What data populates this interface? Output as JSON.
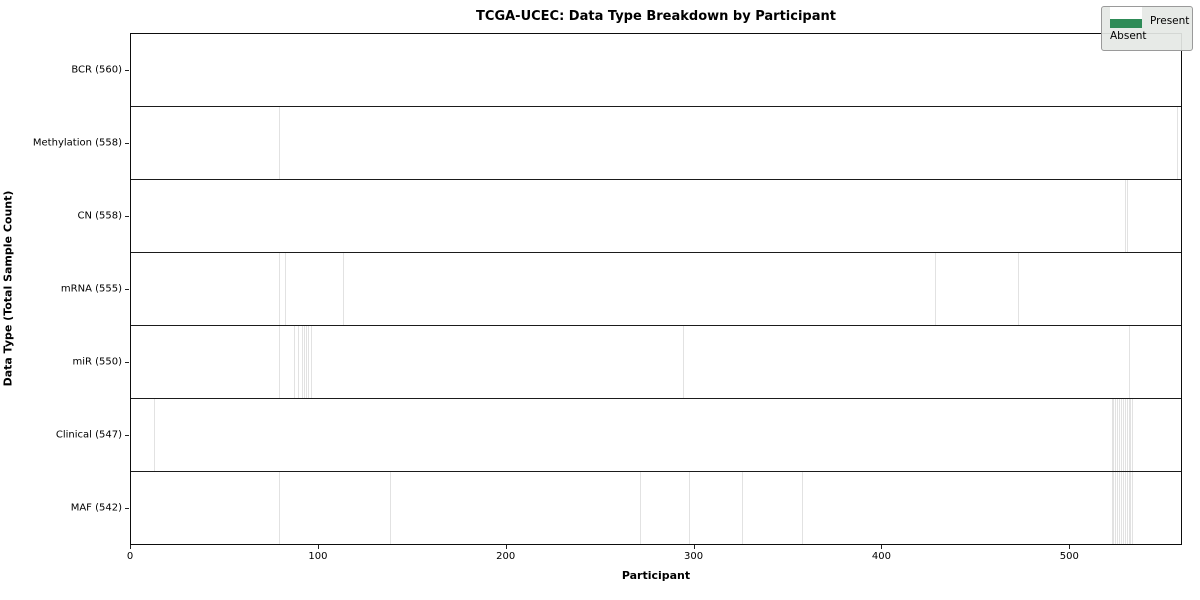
{
  "chart_data": {
    "type": "heatmap",
    "title": "TCGA-UCEC: Data Type Breakdown by Participant",
    "xlabel": "Participant",
    "ylabel": "Data Type (Total Sample Count)",
    "xlim": [
      0,
      560
    ],
    "n_participants": 560,
    "x_ticks": [
      0,
      100,
      200,
      300,
      400,
      500
    ],
    "grid": false,
    "legend_position": "upper right",
    "legend": [
      {
        "label": "Present",
        "color": "#2e8b57"
      },
      {
        "label": "Absent",
        "color": "#ffffff"
      }
    ],
    "colors": {
      "present": "#2e8b57",
      "present_edge": "#1e6240",
      "absent": "#ffffff",
      "absent_edge": "#c6c6c6",
      "row_separator": "#1b1b1b",
      "plot_border": "#0d0d0d"
    },
    "rows": [
      {
        "data_type": "BCR",
        "label": "BCR (560)",
        "present_count": 560,
        "absent_indices": []
      },
      {
        "data_type": "Methylation",
        "label": "Methylation (558)",
        "present_count": 558,
        "absent_indices": [
          79,
          557
        ]
      },
      {
        "data_type": "CN",
        "label": "CN (558)",
        "present_count": 558,
        "absent_indices": [
          529,
          530
        ]
      },
      {
        "data_type": "mRNA",
        "label": "mRNA (555)",
        "present_count": 555,
        "absent_indices": [
          79,
          82,
          113,
          428,
          472
        ]
      },
      {
        "data_type": "miR",
        "label": "miR (550)",
        "present_count": 550,
        "absent_indices": [
          79,
          87,
          89,
          91,
          92,
          93,
          94,
          96,
          294,
          531
        ]
      },
      {
        "data_type": "Clinical",
        "label": "Clinical (547)",
        "present_count": 547,
        "absent_indices": [
          12,
          522,
          523,
          524,
          525,
          526,
          527,
          528,
          529,
          530,
          531,
          532,
          533
        ]
      },
      {
        "data_type": "MAF",
        "label": "MAF (542)",
        "present_count": 542,
        "absent_indices": [
          79,
          138,
          271,
          297,
          325,
          357,
          522,
          523,
          524,
          525,
          526,
          527,
          528,
          529,
          530,
          531,
          532,
          533
        ]
      }
    ]
  }
}
